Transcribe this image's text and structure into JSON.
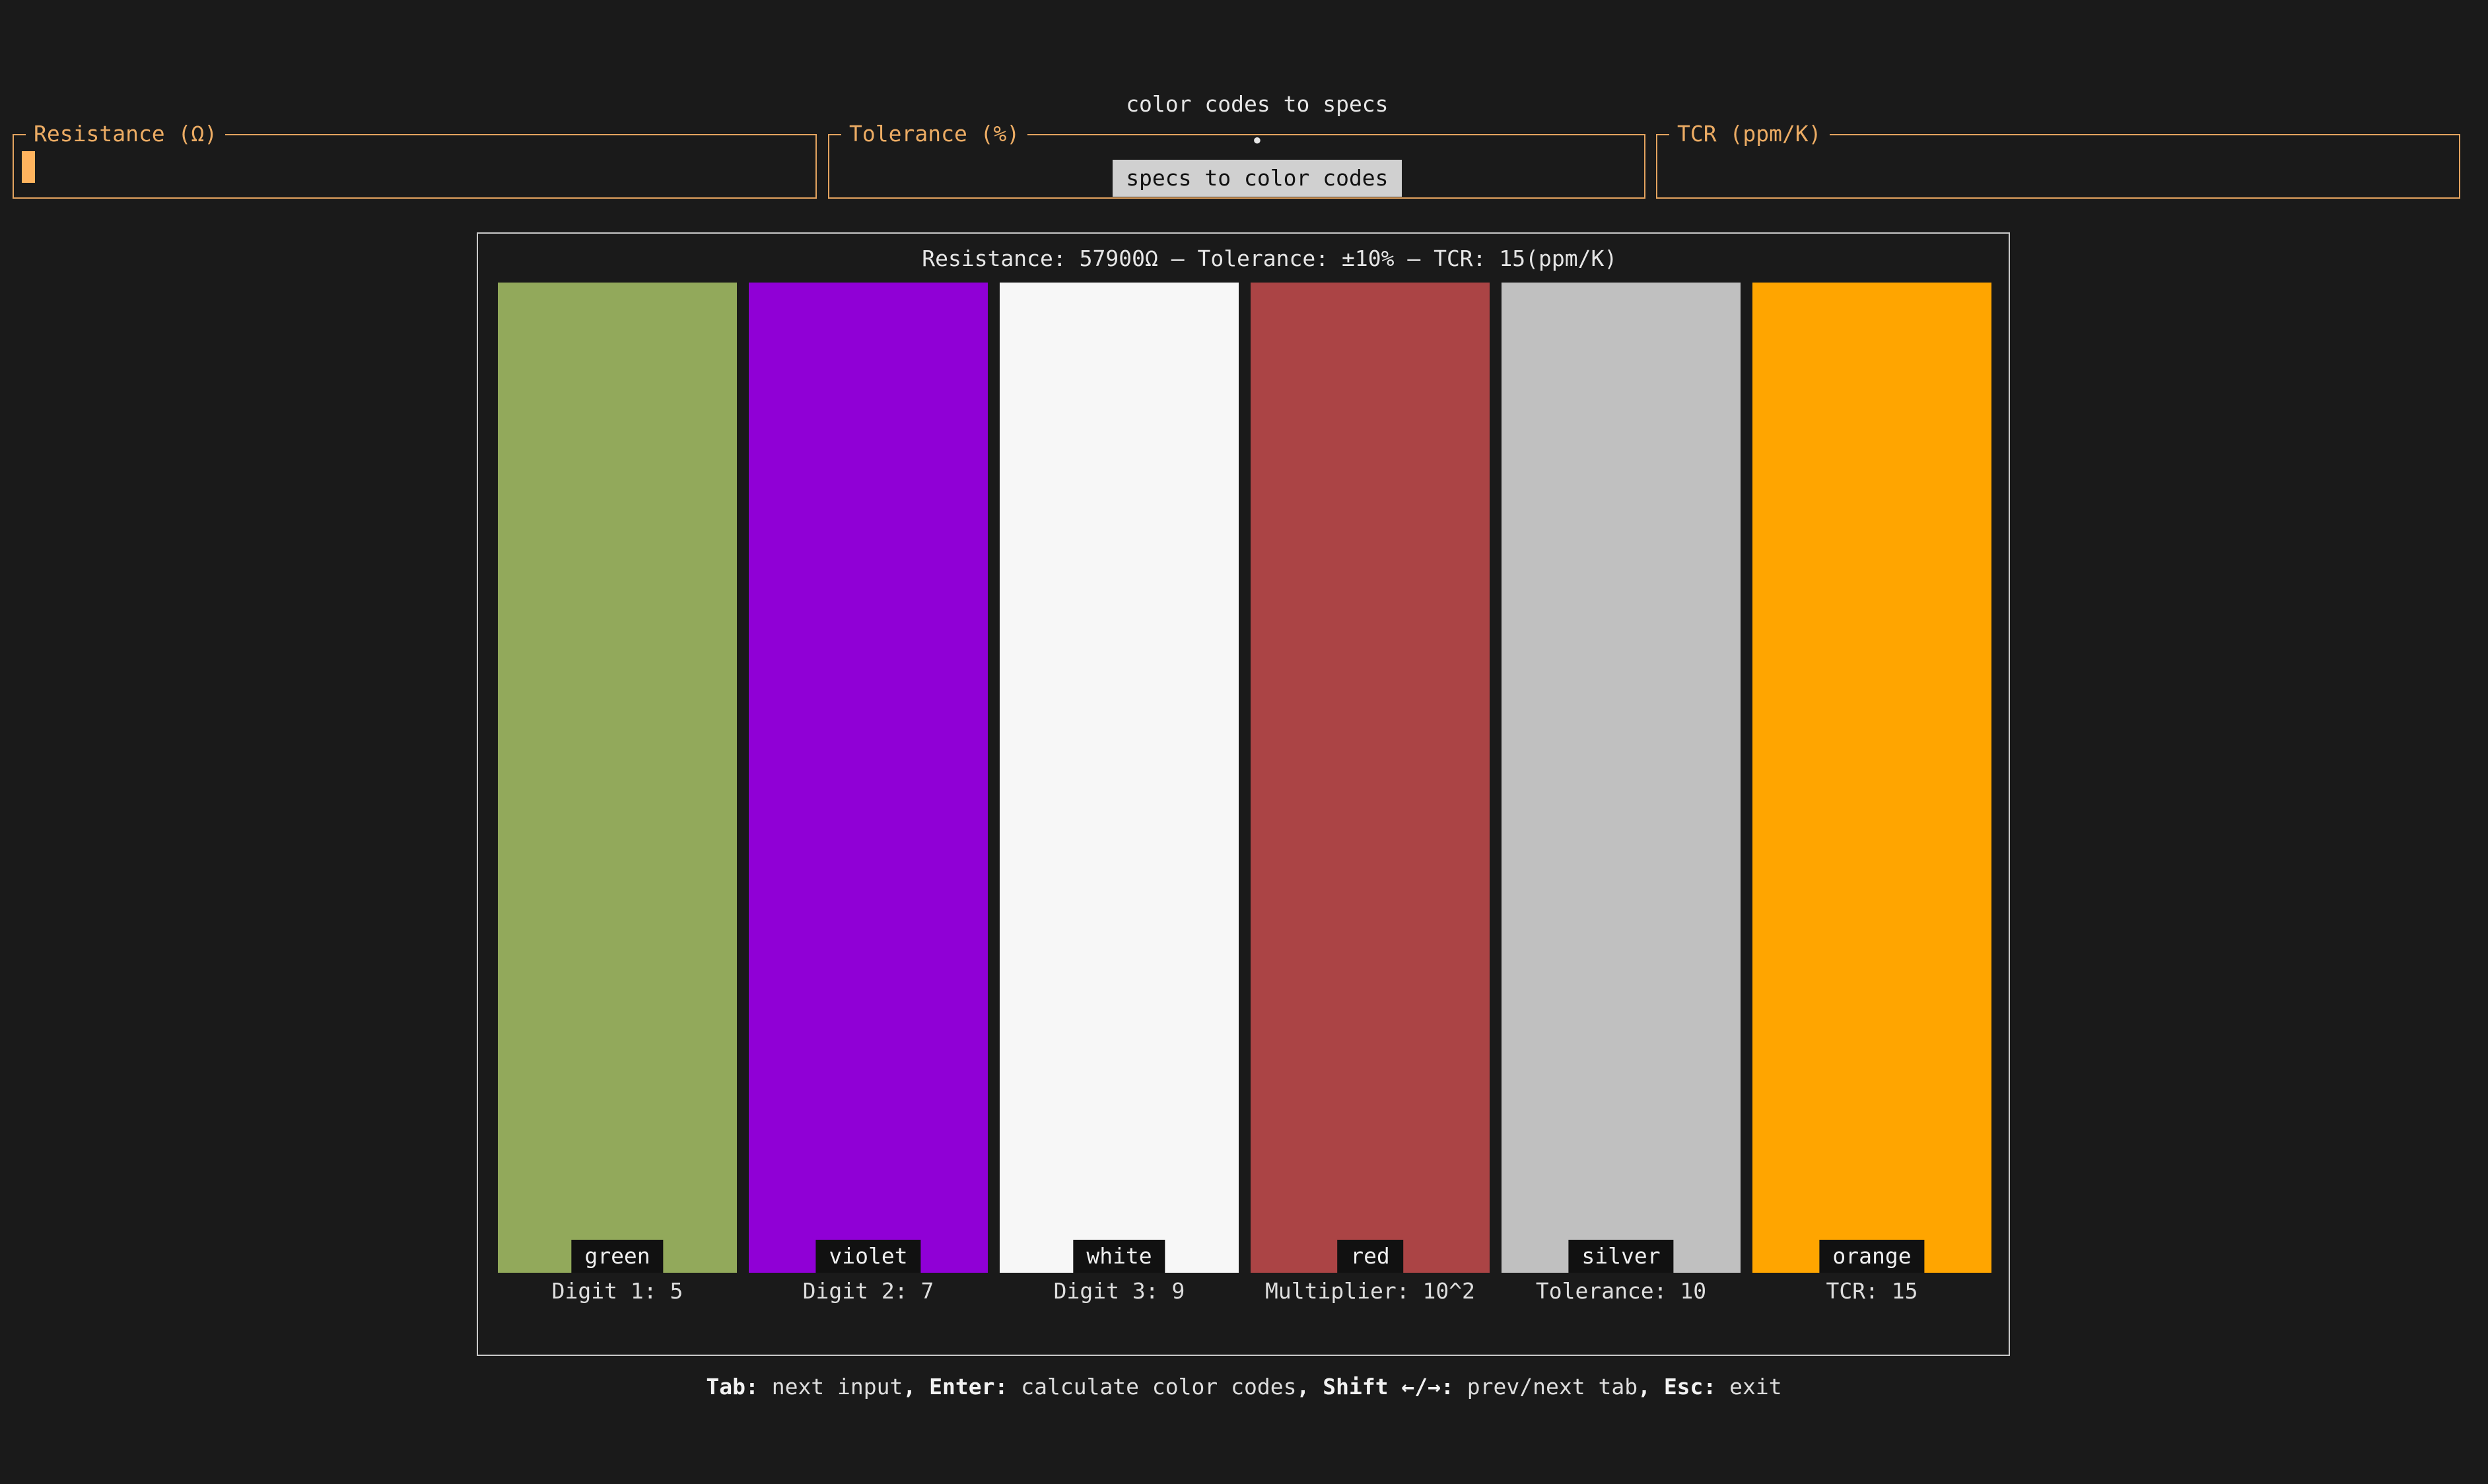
{
  "tabs": [
    {
      "label": "color codes to specs",
      "active": false
    },
    {
      "label": "specs to color codes",
      "active": true
    }
  ],
  "tab_separator": "•",
  "inputs": {
    "resistance": {
      "label": "Resistance (Ω)",
      "value": "",
      "focused": true
    },
    "tolerance": {
      "label": "Tolerance (%)",
      "value": ""
    },
    "tcr": {
      "label": "TCR (ppm/K)",
      "value": ""
    }
  },
  "result": {
    "title": "Resistance: 57900Ω – Tolerance: ±10% – TCR: 15(ppm/K)"
  },
  "bands": [
    {
      "color_name": "green",
      "color": "#92a95b",
      "label": "Digit 1: 5"
    },
    {
      "color_name": "violet",
      "color": "#9000d6",
      "label": "Digit 2: 7"
    },
    {
      "color_name": "white",
      "color": "#f7f7f7",
      "label": "Digit 3: 9"
    },
    {
      "color_name": "red",
      "color": "#ab4445",
      "label": "Multiplier: 10^2"
    },
    {
      "color_name": "silver",
      "color": "#c0c0c0",
      "label": "Tolerance: 10"
    },
    {
      "color_name": "orange",
      "color": "#ffa500",
      "label": "TCR: 15"
    }
  ],
  "help": [
    {
      "key": "Tab:",
      "action": "next input"
    },
    {
      "key": "Enter:",
      "action": "calculate color codes"
    },
    {
      "key": "Shift ←/→:",
      "action": "prev/next tab"
    },
    {
      "key": "Esc:",
      "action": "exit"
    }
  ],
  "help_separator": ","
}
